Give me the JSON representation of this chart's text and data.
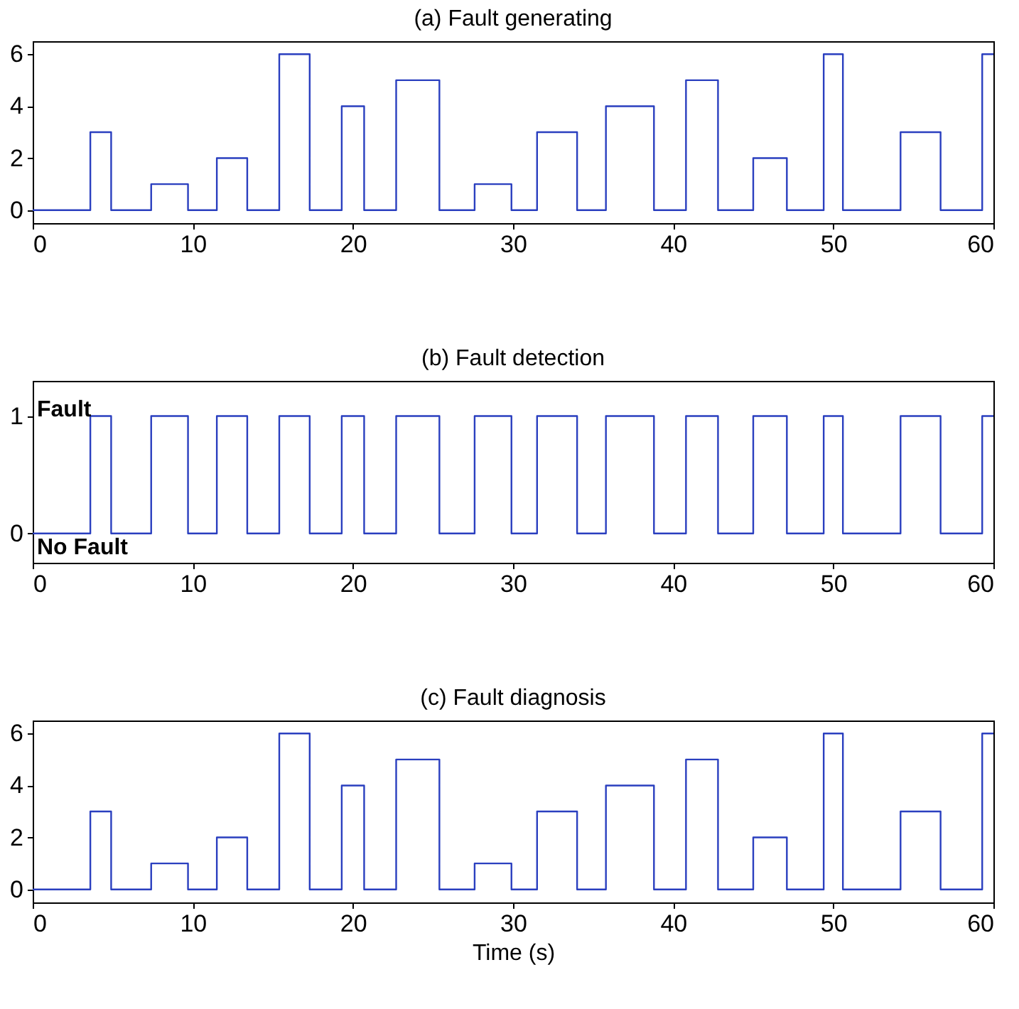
{
  "chart_data": [
    {
      "type": "step",
      "title": "(a) Fault generating",
      "x": [
        0,
        3.6,
        4.9,
        7.4,
        9.7,
        11.5,
        13.4,
        15.4,
        17.3,
        19.3,
        20.7,
        22.7,
        25.4,
        27.6,
        29.9,
        31.5,
        34.0,
        35.8,
        38.8,
        40.8,
        42.8,
        45.0,
        47.1,
        49.4,
        50.6,
        54.2,
        56.7,
        59.3,
        60
      ],
      "series": [
        {
          "color": "#2a3fbf",
          "values": [
            0,
            3,
            0,
            1,
            0,
            2,
            0,
            6,
            0,
            4,
            0,
            5,
            0,
            1,
            0,
            3,
            0,
            4,
            0,
            5,
            0,
            2,
            0,
            6,
            0,
            3,
            0,
            6,
            6
          ]
        }
      ],
      "xlim": [
        0,
        60
      ],
      "xticks": [
        0,
        10,
        20,
        30,
        40,
        50,
        60
      ],
      "ylim": [
        -0.5,
        6.5
      ],
      "yticks": [
        0,
        2,
        4,
        6
      ],
      "grid": false
    },
    {
      "type": "step",
      "title": "(b) Fault detection",
      "x": [
        0,
        3.6,
        4.9,
        7.4,
        9.7,
        11.5,
        13.4,
        15.4,
        17.3,
        19.3,
        20.7,
        22.7,
        25.4,
        27.6,
        29.9,
        31.5,
        34.0,
        35.8,
        38.8,
        40.8,
        42.8,
        45.0,
        47.1,
        49.4,
        50.6,
        54.2,
        56.7,
        59.3,
        60
      ],
      "series": [
        {
          "color": "#2a3fbf",
          "values": [
            0,
            1,
            0,
            1,
            0,
            1,
            0,
            1,
            0,
            1,
            0,
            1,
            0,
            1,
            0,
            1,
            0,
            1,
            0,
            1,
            0,
            1,
            0,
            1,
            0,
            1,
            0,
            1,
            1
          ]
        }
      ],
      "xlim": [
        0,
        60
      ],
      "xticks": [
        0,
        10,
        20,
        30,
        40,
        50,
        60
      ],
      "ylim": [
        -0.25,
        1.3
      ],
      "yticks": [
        0,
        1
      ],
      "grid": false,
      "annotations": [
        "Fault",
        "No Fault"
      ]
    },
    {
      "type": "step",
      "title": "(c) Fault diagnosis",
      "xlabel": "Time (s)",
      "x": [
        0,
        3.6,
        4.9,
        7.4,
        9.7,
        11.5,
        13.4,
        15.4,
        17.3,
        19.3,
        20.7,
        22.7,
        25.4,
        27.6,
        29.9,
        31.5,
        34.0,
        35.8,
        38.8,
        40.8,
        42.8,
        45.0,
        47.1,
        49.4,
        50.6,
        54.2,
        56.7,
        59.3,
        60
      ],
      "series": [
        {
          "color": "#2a3fbf",
          "values": [
            0,
            3,
            0,
            1,
            0,
            2,
            0,
            6,
            0,
            4,
            0,
            5,
            0,
            1,
            0,
            3,
            0,
            4,
            0,
            5,
            0,
            2,
            0,
            6,
            0,
            3,
            0,
            6,
            6
          ]
        }
      ],
      "xlim": [
        0,
        60
      ],
      "xticks": [
        0,
        10,
        20,
        30,
        40,
        50,
        60
      ],
      "ylim": [
        -0.5,
        6.5
      ],
      "yticks": [
        0,
        2,
        4,
        6
      ],
      "grid": false
    }
  ]
}
